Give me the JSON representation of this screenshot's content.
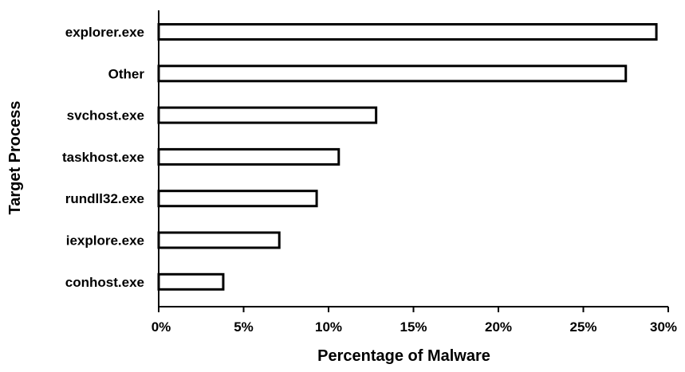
{
  "chart_data": {
    "type": "bar",
    "orientation": "horizontal",
    "categories": [
      "explorer.exe",
      "Other",
      "svchost.exe",
      "taskhost.exe",
      "rundll32.exe",
      "iexplore.exe",
      "conhost.exe"
    ],
    "values": [
      29.3,
      27.5,
      12.8,
      10.6,
      9.3,
      7.1,
      3.8
    ],
    "xlabel": "Percentage of Malware",
    "ylabel": "Target Process",
    "xlim": [
      0,
      30
    ],
    "xticks": [
      0,
      5,
      10,
      15,
      20,
      25,
      30
    ],
    "xtick_labels": [
      "0%",
      "5%",
      "10%",
      "15%",
      "20%",
      "25%",
      "30%"
    ],
    "grid": false,
    "bar_fill": "#ffffff",
    "bar_stroke": "#000000"
  }
}
